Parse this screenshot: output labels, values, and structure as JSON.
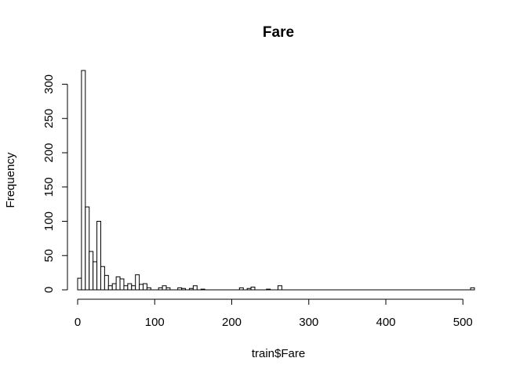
{
  "chart_data": {
    "type": "bar",
    "title": "Fare",
    "xlabel": "train$Fare",
    "ylabel": "Frequency",
    "bin_width": 5,
    "xlim": [
      0,
      515
    ],
    "ylim": [
      0,
      320
    ],
    "x_ticks": [
      0,
      100,
      200,
      300,
      400,
      500
    ],
    "y_ticks": [
      0,
      50,
      100,
      150,
      200,
      250,
      300
    ],
    "bins": [
      {
        "x0": 0,
        "x1": 5,
        "count": 17
      },
      {
        "x0": 5,
        "x1": 10,
        "count": 320
      },
      {
        "x0": 10,
        "x1": 15,
        "count": 121
      },
      {
        "x0": 15,
        "x1": 20,
        "count": 56
      },
      {
        "x0": 20,
        "x1": 25,
        "count": 41
      },
      {
        "x0": 25,
        "x1": 30,
        "count": 100
      },
      {
        "x0": 30,
        "x1": 35,
        "count": 34
      },
      {
        "x0": 35,
        "x1": 40,
        "count": 21
      },
      {
        "x0": 40,
        "x1": 45,
        "count": 6
      },
      {
        "x0": 45,
        "x1": 50,
        "count": 9
      },
      {
        "x0": 50,
        "x1": 55,
        "count": 19
      },
      {
        "x0": 55,
        "x1": 60,
        "count": 16
      },
      {
        "x0": 60,
        "x1": 65,
        "count": 6
      },
      {
        "x0": 65,
        "x1": 70,
        "count": 9
      },
      {
        "x0": 70,
        "x1": 75,
        "count": 6
      },
      {
        "x0": 75,
        "x1": 80,
        "count": 22
      },
      {
        "x0": 80,
        "x1": 85,
        "count": 8
      },
      {
        "x0": 85,
        "x1": 90,
        "count": 9
      },
      {
        "x0": 90,
        "x1": 95,
        "count": 3
      },
      {
        "x0": 95,
        "x1": 100,
        "count": 0
      },
      {
        "x0": 100,
        "x1": 105,
        "count": 0
      },
      {
        "x0": 105,
        "x1": 110,
        "count": 3
      },
      {
        "x0": 110,
        "x1": 115,
        "count": 6
      },
      {
        "x0": 115,
        "x1": 120,
        "count": 3
      },
      {
        "x0": 120,
        "x1": 125,
        "count": 0
      },
      {
        "x0": 125,
        "x1": 130,
        "count": 0
      },
      {
        "x0": 130,
        "x1": 135,
        "count": 3
      },
      {
        "x0": 135,
        "x1": 140,
        "count": 2
      },
      {
        "x0": 140,
        "x1": 145,
        "count": 0
      },
      {
        "x0": 145,
        "x1": 150,
        "count": 2
      },
      {
        "x0": 150,
        "x1": 155,
        "count": 6
      },
      {
        "x0": 155,
        "x1": 160,
        "count": 0
      },
      {
        "x0": 160,
        "x1": 165,
        "count": 1
      },
      {
        "x0": 210,
        "x1": 215,
        "count": 3
      },
      {
        "x0": 215,
        "x1": 220,
        "count": 0
      },
      {
        "x0": 220,
        "x1": 225,
        "count": 2
      },
      {
        "x0": 225,
        "x1": 230,
        "count": 4
      },
      {
        "x0": 245,
        "x1": 250,
        "count": 1
      },
      {
        "x0": 260,
        "x1": 265,
        "count": 6
      },
      {
        "x0": 510,
        "x1": 515,
        "count": 3
      }
    ]
  }
}
